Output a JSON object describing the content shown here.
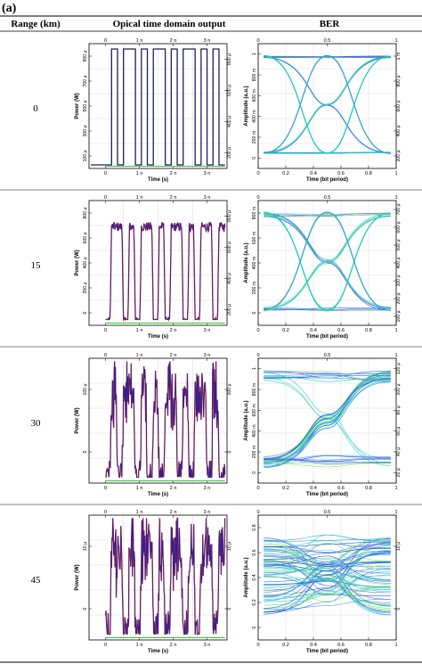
{
  "figure": {
    "panel_label": "(a)",
    "headers": {
      "range": "Range (km)",
      "optical": "Opical time domain output",
      "ber": "BER"
    }
  },
  "colors": {
    "background": "#ffffff",
    "grid": "#cfcfcf",
    "frame": "#000000",
    "wave_dark": "#1d1f5a",
    "wave_noisy": "#3a1f8c",
    "wave_red": "#b01c1c",
    "baseline_green": "#35c835",
    "eye_colors": [
      "#1f6fe0",
      "#2c96ea",
      "#1ec8c0",
      "#3bdca0",
      "#7fe45a",
      "#2050d8",
      "#5b6ef0"
    ]
  },
  "rows": [
    {
      "range": "0",
      "optical": {
        "y_left_ticks": [
          "100 μ",
          "300 μ",
          "500 μ",
          "700 μ",
          "900 μ"
        ],
        "y_right_ticks": [
          "200 μ",
          "400 μ",
          "600 μ",
          "800 μ"
        ],
        "x_ticks": [
          "0",
          "1 n",
          "2 n",
          "3 n"
        ],
        "ylabel": "Power (W)",
        "xlabel": "Time (s)",
        "style": "square"
      },
      "ber": {
        "y_left_ticks": [
          "0",
          "200 m",
          "400 m",
          "600 m",
          "800 m",
          "1"
        ],
        "y_right_ticks": [
          "200 μ",
          "400 μ",
          "600 μ",
          "800 μ",
          "1 m"
        ],
        "x_ticks": [
          "0",
          "0.2",
          "0.4",
          "0.6",
          "0.8",
          "1"
        ],
        "top_ticks": [
          "0",
          "0.5",
          "1"
        ],
        "ylabel": "Amplitude (a.u.)",
        "xlabel": "Time (bit period)",
        "style": "clean"
      }
    },
    {
      "range": "15",
      "optical": {
        "y_left_ticks": [
          "0",
          "200 μ",
          "400 μ",
          "600 μ",
          "800 μ"
        ],
        "y_right_ticks": [
          "200 μ",
          "400 μ",
          "600 μ",
          "800 μ"
        ],
        "x_ticks": [
          "0",
          "1 n",
          "2 n",
          "3 n"
        ],
        "ylabel": "Power (W)",
        "xlabel": "Time (s)",
        "style": "moderate"
      },
      "ber": {
        "y_left_ticks": [
          "0",
          "200 m",
          "400 m",
          "600 m",
          "800 m"
        ],
        "y_right_ticks": [
          "100 μ",
          "200 μ",
          "300 μ",
          "400 μ",
          "500 μ",
          "600 μ",
          "700 μ"
        ],
        "x_ticks": [
          "0",
          "0.2",
          "0.4",
          "0.6",
          "0.8",
          "1"
        ],
        "top_ticks": [
          "0",
          "0.5",
          "1"
        ],
        "ylabel": "Amplitude (a.u.)",
        "xlabel": "Time (bit period)",
        "style": "slight"
      }
    },
    {
      "range": "30",
      "optical": {
        "y_left_ticks": [
          "0",
          "100 μ"
        ],
        "y_right_ticks": [
          "0",
          "100 μ"
        ],
        "x_ticks": [
          "0",
          "1 n",
          "2 n",
          "3 n"
        ],
        "ylabel": "Power (W)",
        "xlabel": "Time (s)",
        "style": "noisy"
      },
      "ber": {
        "y_left_ticks": [
          "0",
          "200 m",
          "400 m",
          "600 m",
          "800 m",
          "1"
        ],
        "y_right_ticks": [
          "20 μ",
          "40 μ",
          "60 μ",
          "80 μ",
          "100 μ",
          "120 μ"
        ],
        "x_ticks": [
          "0",
          "0.2",
          "0.4",
          "0.6",
          "0.8",
          "1"
        ],
        "top_ticks": [
          "0",
          "0.5",
          "1"
        ],
        "ylabel": "Amplitude (a.u.)",
        "xlabel": "Time (bit period)",
        "style": "degraded"
      }
    },
    {
      "range": "45",
      "optical": {
        "y_left_ticks": [
          "0",
          "10 μ"
        ],
        "y_right_ticks": [
          "0",
          "10 μ"
        ],
        "x_ticks": [
          "0",
          "1 n",
          "2 n",
          "3 n"
        ],
        "ylabel": "Power (W)",
        "xlabel": "Time (s)",
        "style": "very_noisy"
      },
      "ber": {
        "y_left_ticks": [
          "0",
          "0.2",
          "0.4",
          "0.6",
          "0.8"
        ],
        "y_right_ticks": [
          "0",
          "10 μ"
        ],
        "x_ticks": [
          "0",
          "0.2",
          "0.4",
          "0.6",
          "0.8",
          "1"
        ],
        "top_ticks": [
          "0",
          "0.5",
          "1"
        ],
        "ylabel": "Amplitude (a.u.)",
        "xlabel": "Time (bit period)",
        "style": "closed"
      }
    }
  ],
  "chart_data": [
    {
      "type": "line",
      "title": "",
      "series": [
        {
          "name": "0 km",
          "bits": [
            0,
            1,
            0,
            1,
            1,
            0,
            1,
            0,
            1,
            1,
            0,
            1,
            0,
            1,
            1,
            0,
            1,
            0,
            1,
            0
          ]
        },
        {
          "name": "15 km",
          "bits": [
            0,
            1,
            1,
            0,
            1,
            0,
            1,
            1,
            0,
            1,
            0,
            1,
            1,
            0,
            1,
            0,
            1,
            1,
            0,
            1
          ]
        },
        {
          "name": "30 km",
          "bits": [
            0,
            1,
            0,
            1,
            1,
            0,
            1,
            0,
            1,
            0,
            1,
            1,
            0,
            1,
            0,
            1,
            1,
            0,
            1,
            0
          ]
        },
        {
          "name": "45 km",
          "bits": [
            0,
            1,
            1,
            0,
            1,
            0,
            1,
            1,
            0,
            1,
            0,
            1,
            1,
            0,
            1,
            0,
            1,
            1,
            0,
            1
          ]
        }
      ],
      "xlabel": "Time (s)",
      "ylabel": "Power (W)"
    }
  ]
}
